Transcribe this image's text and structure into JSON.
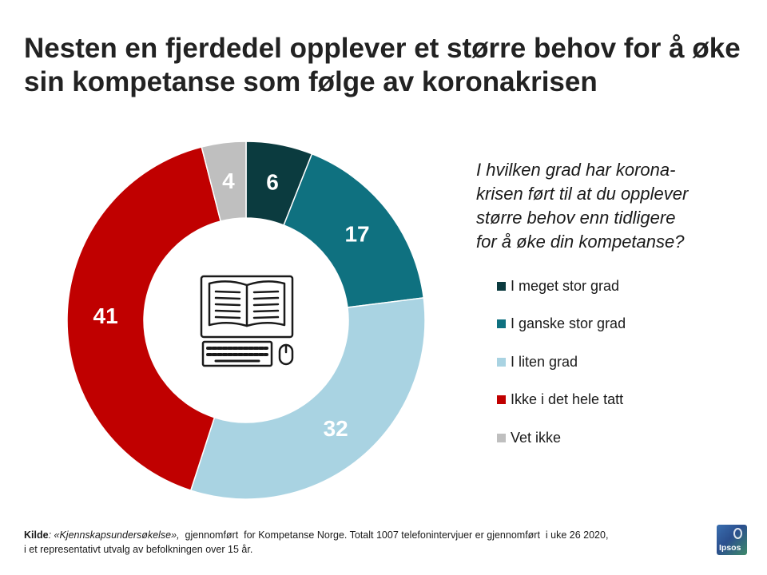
{
  "title": {
    "line1": "Nesten en fjerdedel opplever et større behov for å øke",
    "line2": "sin kompetanse som følge av koronakrisen"
  },
  "question": {
    "line1": "I hvilken grad har korona-",
    "line2": "krisen ført til at du opplever",
    "line3": "større behov enn tidligere",
    "line4": "for å øke din kompetanse?"
  },
  "chart_data": {
    "type": "pie",
    "variant": "donut",
    "title": "",
    "categories": [
      "I meget stor grad",
      "I ganske stor grad",
      "I liten grad",
      "Ikke i det hele tatt",
      "Vet ikke"
    ],
    "values": [
      6,
      17,
      32,
      41,
      4
    ],
    "labels": [
      "6",
      "17",
      "32",
      "41",
      "4"
    ],
    "colors": [
      "#0b3b3f",
      "#0f7180",
      "#a9d3e2",
      "#c00000",
      "#bfbfbf"
    ],
    "unit": "%",
    "legend_position": "right"
  },
  "center_icon": "computer-book-icon",
  "footnote": {
    "kilde": "Kilde",
    "survey": ": «Kjennskapsundersøkelse»,",
    "line1_rest": "  gjennomført  for Kompetanse Norge. Totalt 1007 telefonintervjuer er gjennomført  i uke 26 2020,",
    "line2": "i et representativt utvalg av befolkningen over 15 år."
  },
  "logo": {
    "text": "Ipsos"
  }
}
